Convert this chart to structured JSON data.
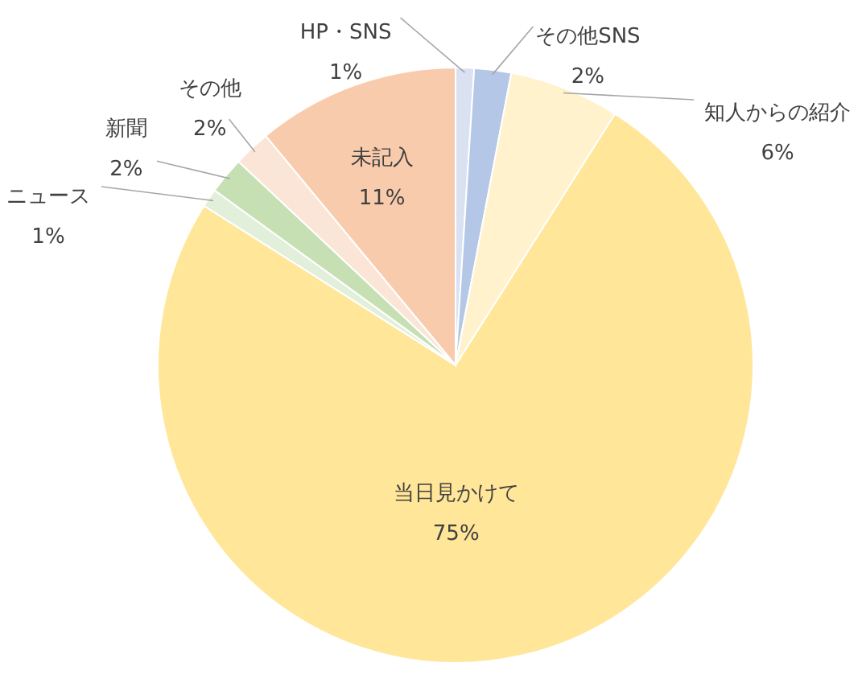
{
  "chart_data": {
    "type": "pie",
    "categories": [
      "HP・SNS",
      "その他SNS",
      "知人からの紹介",
      "当日見かけて",
      "ニュース",
      "新聞",
      "その他",
      "未記入"
    ],
    "values": [
      1,
      2,
      6,
      75,
      1,
      2,
      2,
      11
    ],
    "value_labels": [
      "1%",
      "2%",
      "6%",
      "75%",
      "1%",
      "2%",
      "2%",
      "11%"
    ],
    "colors": [
      "#d9e1f2",
      "#b4c7e7",
      "#fff2cc",
      "#ffe699",
      "#e2efda",
      "#c6e0b4",
      "#fbe5d6",
      "#f8cbad"
    ]
  }
}
